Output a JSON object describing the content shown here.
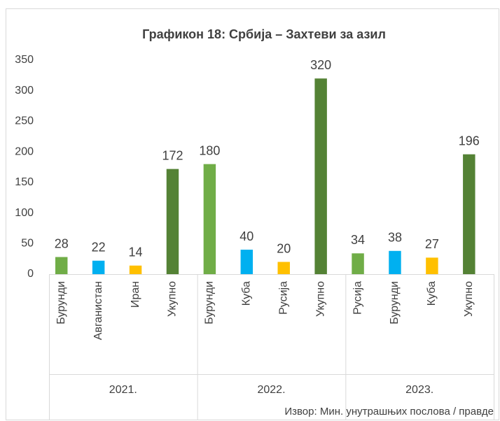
{
  "chart_data": {
    "type": "bar",
    "title": "Графикон 18: Србија – Захтеви за азил",
    "categories": [
      "Бурунди",
      "Авганистан",
      "Иран",
      "Укупно",
      "Бурунди",
      "Куба",
      "Русија",
      "Укупно",
      "Русија",
      "Бурунди",
      "Куба",
      "Укупно"
    ],
    "groups": [
      "2021.",
      "2022.",
      "2023."
    ],
    "values": [
      28,
      22,
      14,
      172,
      180,
      40,
      20,
      320,
      34,
      38,
      27,
      196
    ],
    "colors": [
      "#70ad47",
      "#00b0f0",
      "#ffc000",
      "#548235",
      "#70ad47",
      "#00b0f0",
      "#ffc000",
      "#548235",
      "#70ad47",
      "#00b0f0",
      "#ffc000",
      "#548235"
    ],
    "ylim": [
      0,
      350
    ],
    "yticks": [
      0,
      50,
      100,
      150,
      200,
      250,
      300,
      350
    ],
    "grid": false,
    "source": "Извор: Мин. унутрашњих послова / правде"
  }
}
